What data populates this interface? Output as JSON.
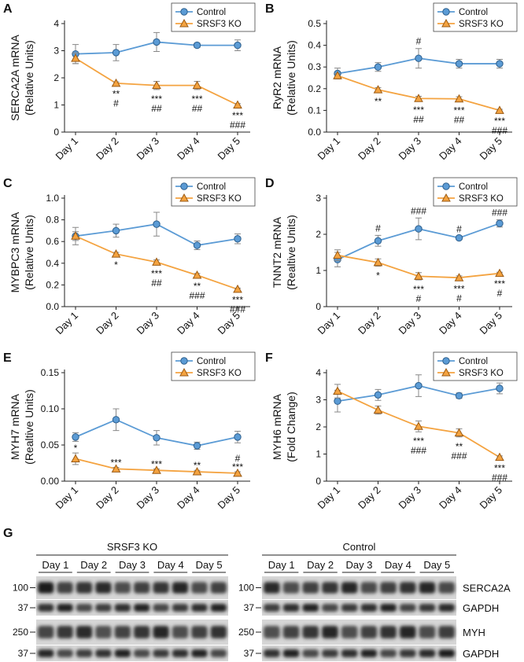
{
  "chart_data": [
    {
      "type": "line",
      "panel": "A",
      "y_label": [
        "SERCA2A mRNA",
        "(Relative Units)"
      ],
      "categories": [
        "Day 1",
        "Day 2",
        "Day 3",
        "Day 4",
        "Day 5"
      ],
      "series": [
        {
          "name": "Control",
          "color": "#5b9bd5",
          "marker": "circle",
          "values": [
            2.88,
            2.93,
            3.32,
            3.2,
            3.2
          ],
          "errors": [
            0.35,
            0.3,
            0.35,
            0.08,
            0.2
          ]
        },
        {
          "name": "SRSF3 KO",
          "color": "#f4a340",
          "marker": "triangle",
          "values": [
            2.72,
            1.8,
            1.72,
            1.72,
            1.0
          ],
          "errors": [
            0.2,
            0.05,
            0.15,
            0.15,
            0.05
          ]
        }
      ],
      "ylim": [
        0,
        4
      ],
      "yticks": [
        0,
        1,
        2,
        3,
        4
      ],
      "marks_below": [
        [],
        [
          "**",
          "#"
        ],
        [
          "***",
          "##"
        ],
        [
          "***",
          "##"
        ],
        [
          "***",
          "###"
        ]
      ]
    },
    {
      "type": "line",
      "panel": "B",
      "y_label": [
        "RyR2 mRNA",
        "(Relative Units)"
      ],
      "categories": [
        "Day 1",
        "Day 2",
        "Day 3",
        "Day 4",
        "Day 5"
      ],
      "series": [
        {
          "name": "Control",
          "color": "#5b9bd5",
          "marker": "circle",
          "values": [
            0.27,
            0.3,
            0.34,
            0.315,
            0.315
          ],
          "errors": [
            0.025,
            0.02,
            0.045,
            0.02,
            0.02
          ]
        },
        {
          "name": "SRSF3 KO",
          "color": "#f4a340",
          "marker": "triangle",
          "values": [
            0.26,
            0.195,
            0.155,
            0.153,
            0.1
          ],
          "errors": [
            0.01,
            0.01,
            0.01,
            0.01,
            0.005
          ]
        }
      ],
      "ylim": [
        0,
        0.5
      ],
      "yticks": [
        {
          "value": 0,
          "label": "0.0"
        },
        0.1,
        0.2,
        0.3,
        0.4,
        0.5
      ],
      "marks_above": [
        [],
        [],
        [
          "#"
        ],
        [],
        []
      ],
      "marks_below": [
        [],
        [
          "**"
        ],
        [
          "***",
          "##"
        ],
        [
          "***",
          "##"
        ],
        [
          "***",
          "###"
        ]
      ]
    },
    {
      "type": "line",
      "panel": "C",
      "y_label": [
        "MYBPC3 mRNA",
        "(Relative Units)"
      ],
      "categories": [
        "Day 1",
        "Day 2",
        "Day 3",
        "Day 4",
        "Day 5"
      ],
      "series": [
        {
          "name": "Control",
          "color": "#5b9bd5",
          "marker": "circle",
          "values": [
            0.65,
            0.7,
            0.76,
            0.565,
            0.625
          ],
          "errors": [
            0.08,
            0.06,
            0.11,
            0.04,
            0.045
          ]
        },
        {
          "name": "SRSF3 KO",
          "color": "#f4a340",
          "marker": "triangle",
          "values": [
            0.65,
            0.485,
            0.41,
            0.29,
            0.16
          ],
          "errors": [
            0.04,
            0.015,
            0.02,
            0.015,
            0.01
          ]
        }
      ],
      "ylim": [
        0,
        1
      ],
      "yticks": [
        {
          "value": 0,
          "label": "0.0"
        },
        0.2,
        0.4,
        0.6,
        0.8,
        {
          "value": 1,
          "label": "1.0"
        }
      ],
      "marks_below": [
        [],
        [
          "*"
        ],
        [
          "***",
          "##"
        ],
        [
          "**",
          "###"
        ],
        [
          "***",
          "###"
        ]
      ]
    },
    {
      "type": "line",
      "panel": "D",
      "y_label": [
        "TNNT2 mRNA",
        "(Realtive Units)"
      ],
      "categories": [
        "Day 1",
        "Day 2",
        "Day 3",
        "Day 4",
        "Day 5"
      ],
      "series": [
        {
          "name": "Control",
          "color": "#5b9bd5",
          "marker": "circle",
          "values": [
            1.3,
            1.82,
            2.15,
            1.9,
            2.3
          ],
          "errors": [
            0.2,
            0.15,
            0.3,
            0.05,
            0.1
          ]
        },
        {
          "name": "SRSF3 KO",
          "color": "#f4a340",
          "marker": "triangle",
          "values": [
            1.42,
            1.22,
            0.84,
            0.8,
            0.92
          ],
          "errors": [
            0.15,
            0.1,
            0.1,
            0.05,
            0.03
          ]
        }
      ],
      "ylim": [
        0,
        3
      ],
      "yticks": [
        0,
        1,
        2,
        3
      ],
      "marks_above": [
        [],
        [
          "#"
        ],
        [
          "###"
        ],
        [
          "#"
        ],
        [
          "###"
        ]
      ],
      "marks_below": [
        [],
        [
          "*"
        ],
        [
          "***",
          "#"
        ],
        [
          "***",
          "#"
        ],
        [
          "***",
          "#"
        ]
      ]
    },
    {
      "type": "line",
      "panel": "E",
      "y_label": [
        "MYH7 mRNA",
        "(Realtive Units)"
      ],
      "categories": [
        "Day 1",
        "Day 2",
        "Day 3",
        "Day 4",
        "Day 5"
      ],
      "series": [
        {
          "name": "Control",
          "color": "#5b9bd5",
          "marker": "circle",
          "values": [
            0.061,
            0.085,
            0.06,
            0.049,
            0.061
          ],
          "errors": [
            0.006,
            0.015,
            0.01,
            0.005,
            0.008
          ]
        },
        {
          "name": "SRSF3 KO",
          "color": "#f4a340",
          "marker": "triangle",
          "values": [
            0.031,
            0.017,
            0.015,
            0.013,
            0.011
          ],
          "errors": [
            0.008,
            0.002,
            0.002,
            0.002,
            0.002
          ]
        }
      ],
      "ylim": [
        0,
        0.15
      ],
      "yticks": [
        {
          "value": 0,
          "label": "0.00"
        },
        0.05,
        {
          "value": 0.1,
          "label": "0.10"
        },
        0.15
      ],
      "marks_between": [
        [
          "*"
        ],
        [
          "***"
        ],
        [
          "***"
        ],
        [
          "**"
        ],
        [
          "#",
          "***"
        ]
      ]
    },
    {
      "type": "line",
      "panel": "F",
      "y_label": [
        "MYH6 mRNA",
        "(Fold Change)"
      ],
      "categories": [
        "Day 1",
        "Day 2",
        "Day 3",
        "Day 4",
        "Day 5"
      ],
      "series": [
        {
          "name": "Control",
          "color": "#5b9bd5",
          "marker": "circle",
          "values": [
            2.95,
            3.18,
            3.52,
            3.15,
            3.42
          ],
          "errors": [
            0.4,
            0.2,
            0.4,
            0.1,
            0.2
          ]
        },
        {
          "name": "SRSF3 KO",
          "color": "#f4a340",
          "marker": "triangle",
          "values": [
            3.32,
            2.62,
            2.02,
            1.78,
            0.88
          ],
          "errors": [
            0.25,
            0.15,
            0.2,
            0.15,
            0.05
          ]
        }
      ],
      "ylim": [
        0,
        4
      ],
      "yticks": [
        0,
        1,
        2,
        3,
        4
      ],
      "marks_below": [
        [],
        [],
        [
          "***",
          "###"
        ],
        [
          "**",
          "###"
        ],
        [
          "***",
          "###"
        ]
      ]
    }
  ],
  "blot": {
    "panel": "G",
    "groups": [
      {
        "title": "SRSF3 KO",
        "lanes": [
          "Day 1",
          "Day 2",
          "Day 3",
          "Day 4",
          "Day 5"
        ]
      },
      {
        "title": "Control",
        "lanes": [
          "Day 1",
          "Day 2",
          "Day 3",
          "Day 4",
          "Day 5"
        ]
      }
    ],
    "rows": [
      {
        "marker": "100",
        "label": "SERCA2A"
      },
      {
        "marker": "37",
        "label": "GAPDH"
      },
      {
        "marker": "250",
        "label": "MYH"
      },
      {
        "marker": "37",
        "label": "GAPDH"
      }
    ]
  }
}
